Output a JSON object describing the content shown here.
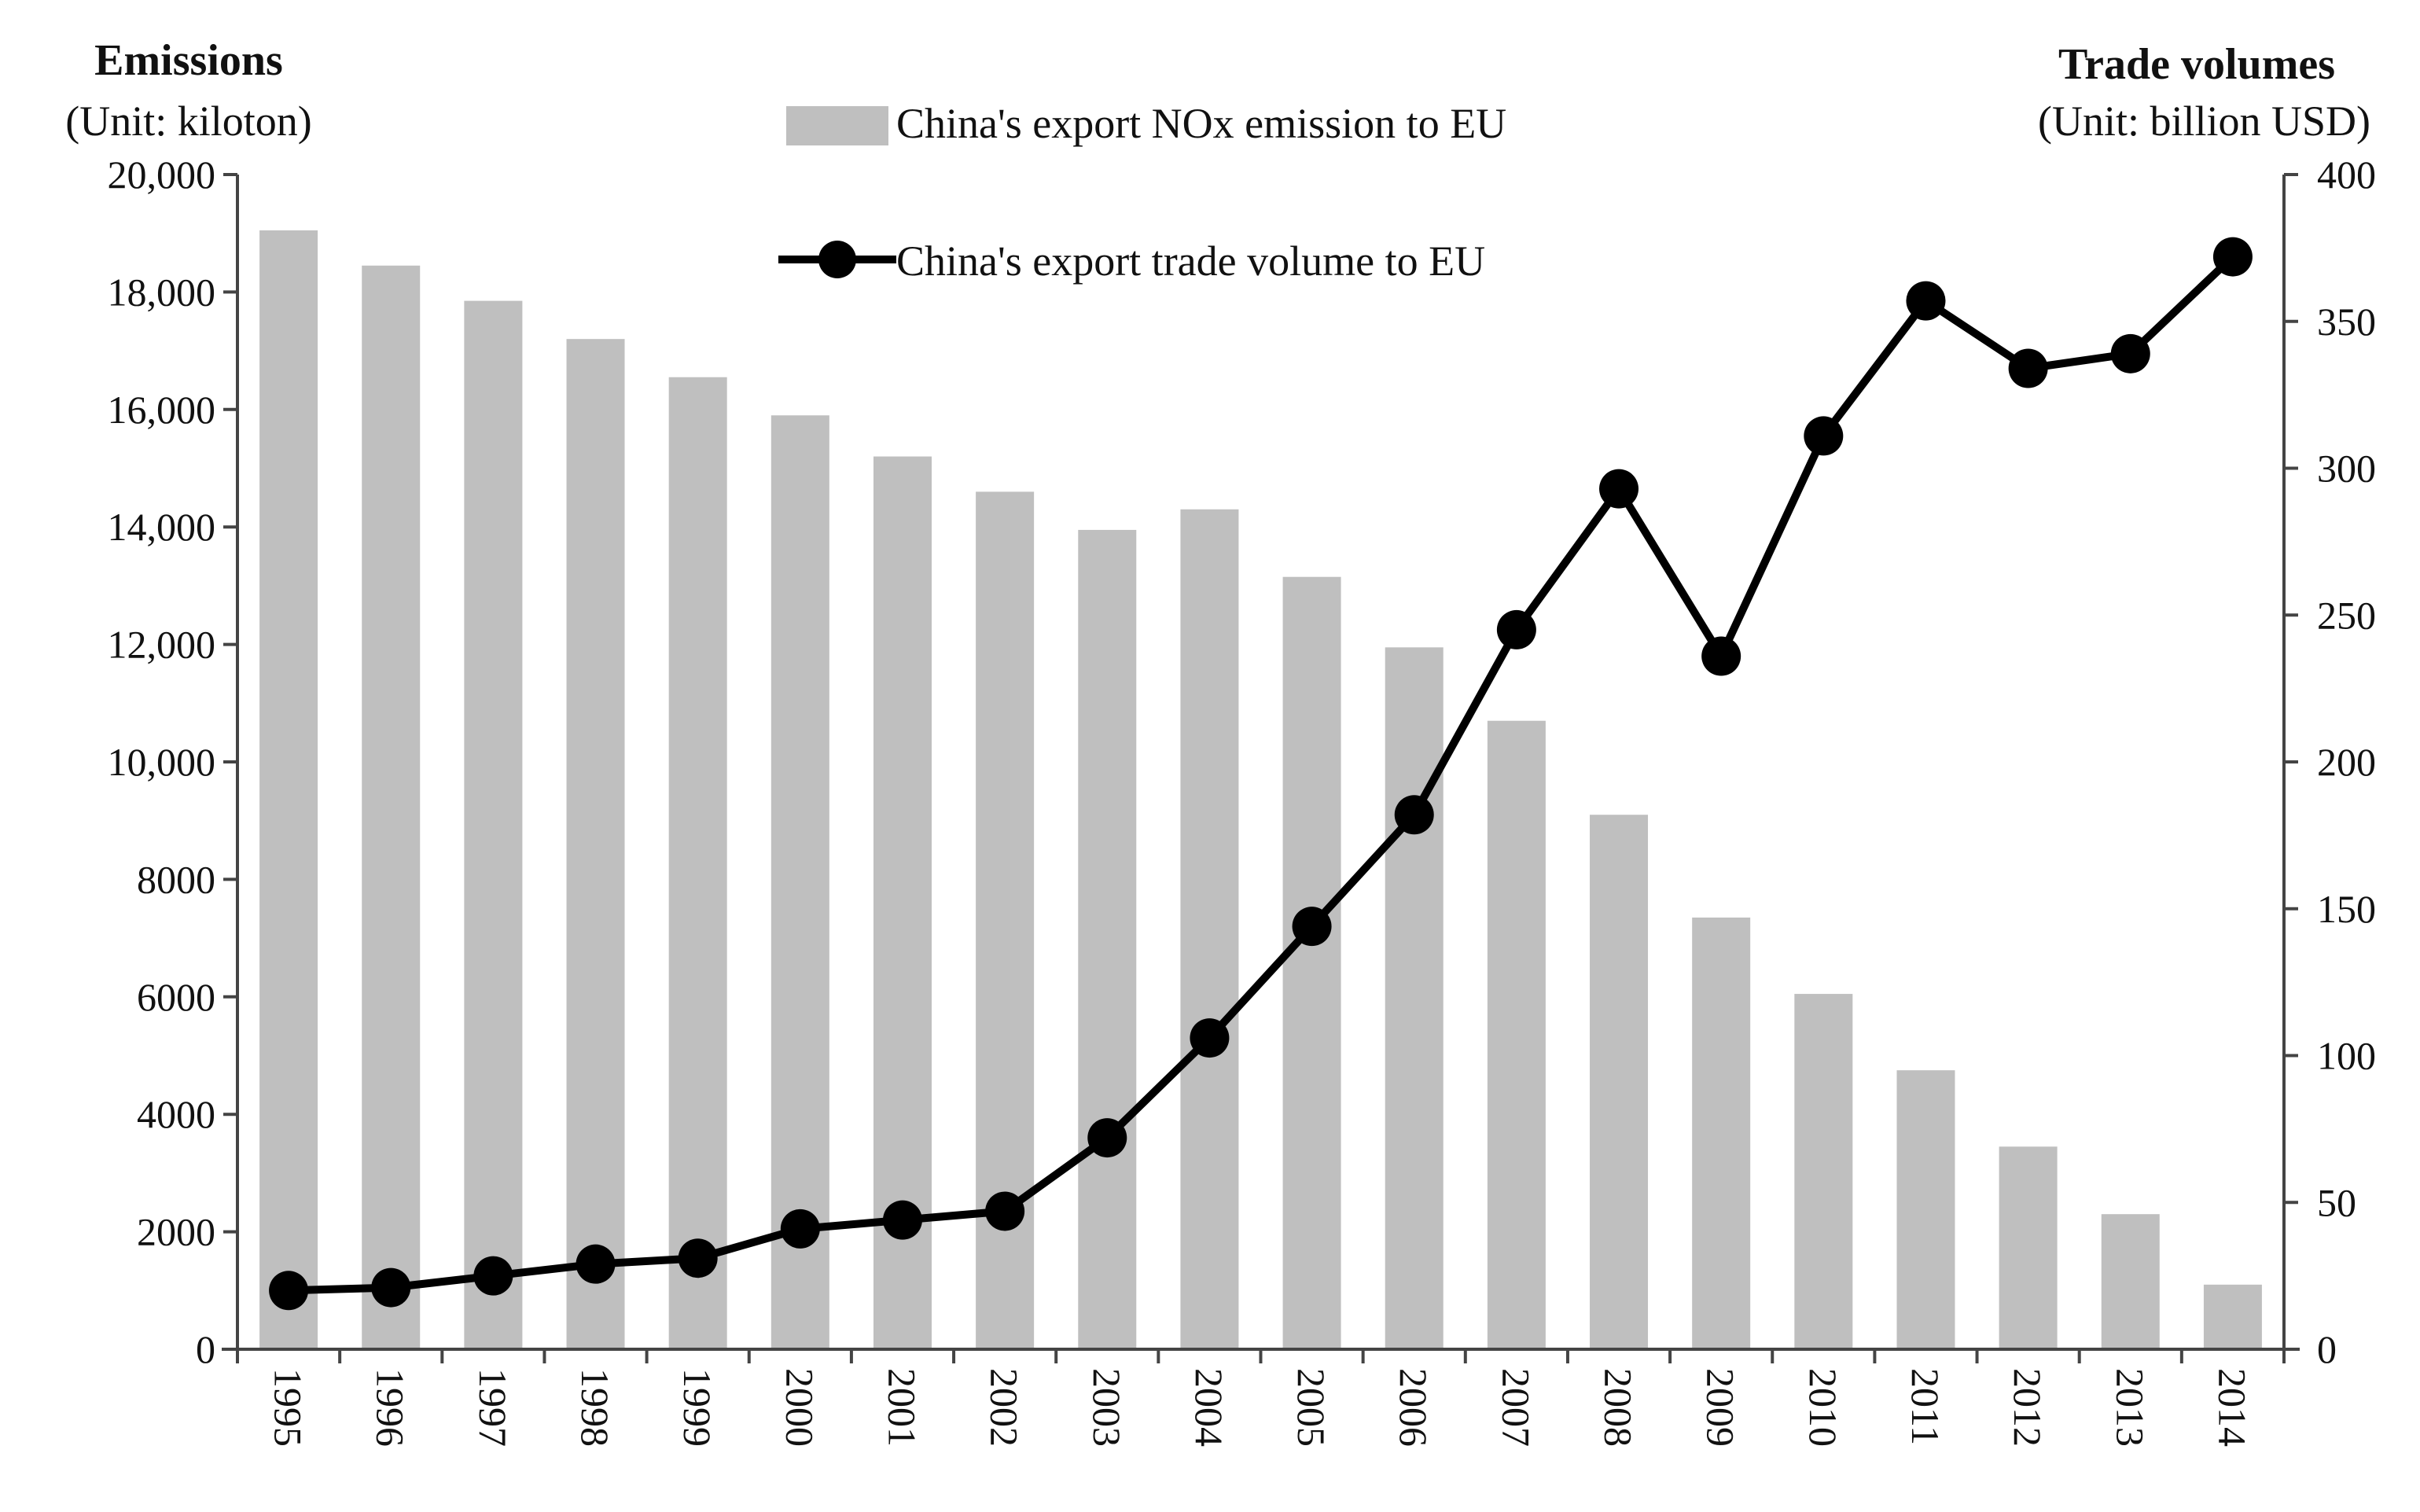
{
  "chart_data": {
    "type": "bar+line",
    "categories": [
      "1995",
      "1996",
      "1997",
      "1998",
      "1999",
      "2000",
      "2001",
      "2002",
      "2003",
      "2004",
      "2005",
      "2006",
      "2007",
      "2008",
      "2009",
      "2010",
      "2011",
      "2012",
      "2013",
      "2014"
    ],
    "series": [
      {
        "name": "China's export NOx emission to EU",
        "type": "bar",
        "axis": "left",
        "color": "#bfbfbf",
        "values": [
          19050,
          18450,
          17850,
          17200,
          16550,
          15900,
          15200,
          14600,
          13950,
          14300,
          13150,
          11950,
          10700,
          9100,
          7350,
          6050,
          4750,
          3450,
          2300,
          1100
        ]
      },
      {
        "name": "China's export trade volume to EU",
        "type": "line",
        "axis": "right",
        "color": "#000000",
        "values": [
          20,
          21,
          25,
          29,
          31,
          41,
          44,
          47,
          72,
          106,
          144,
          182,
          245,
          293,
          236,
          311,
          357,
          334,
          339,
          372
        ]
      }
    ],
    "left_axis": {
      "title": "Emissions",
      "unit": "(Unit: kiloton)",
      "ylim": [
        0,
        20000
      ],
      "ticks": [
        0,
        2000,
        4000,
        6000,
        8000,
        10000,
        12000,
        14000,
        16000,
        18000,
        20000
      ],
      "tick_labels": [
        "0",
        "2000",
        "4000",
        "6000",
        "8000",
        "10,000",
        "12,000",
        "14,000",
        "16,000",
        "18,000",
        "20,000"
      ]
    },
    "right_axis": {
      "title": "Trade volumes",
      "unit": "(Unit: billion USD)",
      "ylim": [
        0,
        400
      ],
      "ticks": [
        0,
        50,
        100,
        150,
        200,
        250,
        300,
        350,
        400
      ],
      "tick_labels": [
        "0",
        "50",
        "100",
        "150",
        "200",
        "250",
        "300",
        "350",
        "400"
      ]
    },
    "legend_position": "top-center",
    "grid": false
  }
}
